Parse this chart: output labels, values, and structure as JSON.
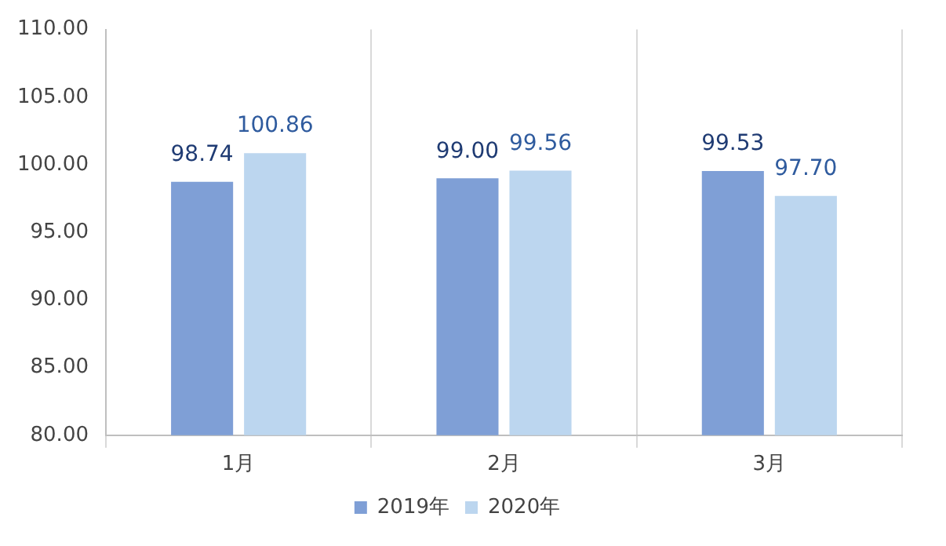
{
  "chart_data": {
    "type": "bar",
    "categories": [
      "1月",
      "2月",
      "3月"
    ],
    "series": [
      {
        "name": "2019年",
        "color": "#7f9fd6",
        "values": [
          98.74,
          99.0,
          99.53
        ],
        "value_labels": [
          "98.74",
          "99.00",
          "99.53"
        ]
      },
      {
        "name": "2020年",
        "color": "#bcd6ef",
        "values": [
          100.86,
          99.56,
          97.7
        ],
        "value_labels": [
          "100.86",
          "99.56",
          "97.70"
        ]
      }
    ],
    "ylim": [
      80,
      110
    ],
    "yticks": [
      {
        "value": 80,
        "label": "80.00"
      },
      {
        "value": 85,
        "label": "85.00"
      },
      {
        "value": 90,
        "label": "90.00"
      },
      {
        "value": 95,
        "label": "95.00"
      },
      {
        "value": 100,
        "label": "100.00"
      },
      {
        "value": 105,
        "label": "105.00"
      },
      {
        "value": 110,
        "label": "110.00"
      }
    ],
    "grid": "x",
    "legend": "bottom"
  }
}
